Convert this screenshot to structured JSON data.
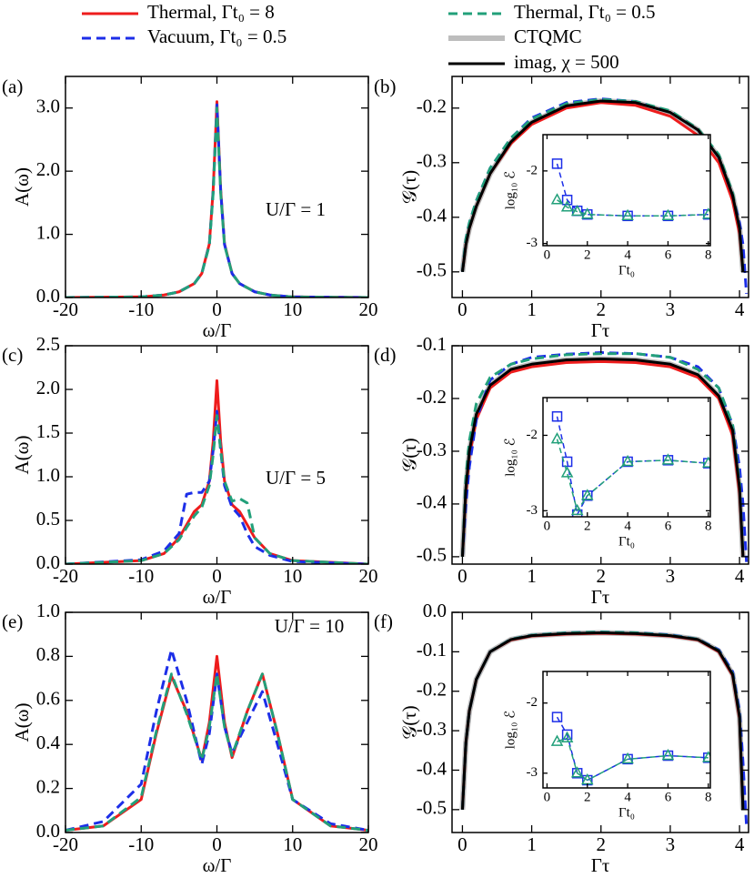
{
  "chart_data": [
    {
      "type": "line",
      "panel_label": "(a)",
      "xlabel": "ω/Γ",
      "ylabel": "A(ω)",
      "annotation": "U/Γ = 1",
      "x": [
        -20,
        -10,
        -7,
        -5,
        -3,
        -2,
        -1,
        -0.5,
        0,
        0.5,
        1,
        2,
        3,
        5,
        7,
        10,
        20
      ],
      "xlim": [
        -20,
        20
      ],
      "ylim": [
        0,
        3.5
      ],
      "xticks": [
        -20,
        -10,
        0,
        10,
        20
      ],
      "yticks": [
        {
          "value": 0,
          "label": "0.0"
        },
        {
          "value": 1,
          "label": "1.0"
        },
        {
          "value": 2,
          "label": "2.0"
        },
        {
          "value": 3,
          "label": "3.0"
        }
      ],
      "series": [
        {
          "color": "#ee1c1c",
          "style": "solid",
          "values": [
            0,
            0.01,
            0.04,
            0.09,
            0.22,
            0.38,
            0.85,
            1.7,
            3.1,
            1.7,
            0.85,
            0.38,
            0.22,
            0.09,
            0.04,
            0.01,
            0
          ]
        },
        {
          "color": "#1c2ee8",
          "style": "dashed",
          "values": [
            0,
            0.01,
            0.04,
            0.09,
            0.22,
            0.38,
            0.84,
            1.68,
            3.05,
            1.68,
            0.84,
            0.38,
            0.22,
            0.09,
            0.04,
            0.01,
            0
          ]
        },
        {
          "color": "#22a07a",
          "style": "dashed",
          "values": [
            0,
            0.01,
            0.04,
            0.09,
            0.22,
            0.38,
            0.83,
            1.65,
            3.0,
            1.65,
            0.83,
            0.38,
            0.22,
            0.09,
            0.04,
            0.01,
            0
          ]
        }
      ]
    },
    {
      "type": "line",
      "panel_label": "(b)",
      "xlabel": "Γτ",
      "ylabel": "𝒢(τ)",
      "x": [
        0,
        0.05,
        0.1,
        0.2,
        0.4,
        0.7,
        1,
        1.5,
        2,
        2.5,
        3,
        3.4,
        3.7,
        3.9,
        4,
        4.05,
        4.1
      ],
      "xlim": [
        -0.15,
        4.13
      ],
      "ylim": [
        -0.547,
        -0.142
      ],
      "xticks": [
        0,
        1,
        2,
        3,
        4
      ],
      "yticks": [
        -0.5,
        -0.4,
        -0.3,
        -0.2
      ],
      "series": [
        {
          "name": "Thermal, Γt₀ = 8",
          "color": "#ee1c1c",
          "style": "solid",
          "values": [
            -0.5,
            -0.45,
            -0.42,
            -0.38,
            -0.32,
            -0.265,
            -0.23,
            -0.2,
            -0.19,
            -0.195,
            -0.215,
            -0.25,
            -0.3,
            -0.37,
            -0.43,
            -0.5,
            null
          ]
        },
        {
          "name": "Vacuum, Γt₀ = 0.5",
          "color": "#1c2ee8",
          "style": "dashed",
          "values": [
            -0.5,
            -0.44,
            -0.41,
            -0.37,
            -0.31,
            -0.255,
            -0.218,
            -0.19,
            -0.183,
            -0.188,
            -0.207,
            -0.24,
            -0.29,
            -0.36,
            -0.41,
            -0.45,
            -0.54
          ]
        },
        {
          "name": "Thermal, Γt₀ = 0.5",
          "color": "#22a07a",
          "style": "dashed",
          "values": [
            -0.5,
            -0.44,
            -0.41,
            -0.37,
            -0.31,
            -0.255,
            -0.22,
            -0.192,
            -0.184,
            -0.188,
            -0.205,
            -0.238,
            -0.285,
            -0.355,
            -0.42,
            -0.5,
            null
          ]
        },
        {
          "name": "CTQMC",
          "color": "#bdbdbd",
          "style": "thick",
          "values": [
            -0.5,
            -0.45,
            -0.42,
            -0.38,
            -0.32,
            -0.262,
            -0.226,
            -0.196,
            -0.187,
            -0.19,
            -0.208,
            -0.24,
            -0.29,
            -0.36,
            -0.42,
            -0.5,
            null
          ]
        },
        {
          "name": "imag, χ = 500",
          "color": "#000000",
          "style": "solid",
          "values": [
            -0.5,
            -0.45,
            -0.42,
            -0.38,
            -0.32,
            -0.262,
            -0.226,
            -0.196,
            -0.187,
            -0.19,
            -0.208,
            -0.24,
            -0.29,
            -0.36,
            -0.42,
            -0.5,
            null
          ]
        }
      ]
    },
    {
      "type": "line",
      "inset": true,
      "xlabel": "Γt₀",
      "ylabel": "log₁₀ ℰ",
      "x": [
        0.5,
        1,
        1.5,
        2,
        4,
        6,
        8
      ],
      "xlim": [
        -0.2,
        8.1
      ],
      "ylim": [
        -3.03,
        -1.5
      ],
      "xticks": [
        0,
        2,
        4,
        6,
        8
      ],
      "yticks": [
        -3,
        -2
      ],
      "series": [
        {
          "color": "#1c2ee8",
          "style": "dashed",
          "marker": "square",
          "values": [
            -1.9,
            -2.4,
            -2.55,
            -2.6,
            -2.62,
            -2.62,
            -2.6
          ]
        },
        {
          "color": "#22a07a",
          "style": "dashed",
          "marker": "triangle",
          "values": [
            -2.4,
            -2.5,
            -2.56,
            -2.6,
            -2.62,
            -2.62,
            -2.6
          ]
        }
      ]
    },
    {
      "type": "line",
      "panel_label": "(c)",
      "xlabel": "ω/Γ",
      "ylabel": "A(ω)",
      "annotation": "U/Γ = 5",
      "x": [
        -20,
        -10,
        -7,
        -5,
        -4,
        -3,
        -2,
        -1,
        -0.5,
        0,
        0.5,
        1,
        2,
        3,
        4,
        5,
        7,
        10,
        20
      ],
      "xlim": [
        -20,
        20
      ],
      "ylim": [
        0,
        2.5
      ],
      "xticks": [
        -20,
        -10,
        0,
        10,
        20
      ],
      "yticks": [
        {
          "value": 0,
          "label": "0.0"
        },
        {
          "value": 0.5,
          "label": "0.5"
        },
        {
          "value": 1,
          "label": "1.0"
        },
        {
          "value": 1.5,
          "label": "1.5"
        },
        {
          "value": 2,
          "label": "2.0"
        },
        {
          "value": 2.5,
          "label": "2.5"
        }
      ],
      "series": [
        {
          "color": "#ee1c1c",
          "style": "solid",
          "values": [
            0,
            0.04,
            0.12,
            0.3,
            0.45,
            0.6,
            0.68,
            0.95,
            1.4,
            2.1,
            1.4,
            0.95,
            0.68,
            0.6,
            0.45,
            0.3,
            0.12,
            0.04,
            0
          ]
        },
        {
          "color": "#1c2ee8",
          "style": "dashed",
          "values": [
            0,
            0.05,
            0.15,
            0.35,
            0.8,
            0.82,
            0.82,
            0.95,
            1.3,
            1.75,
            1.3,
            0.9,
            0.65,
            0.55,
            0.35,
            0.2,
            0.1,
            0.03,
            0
          ]
        },
        {
          "color": "#22a07a",
          "style": "dashed",
          "values": [
            0,
            0.04,
            0.12,
            0.28,
            0.42,
            0.55,
            0.65,
            0.9,
            1.25,
            1.7,
            1.3,
            0.95,
            0.72,
            0.75,
            0.7,
            0.3,
            0.12,
            0.04,
            0
          ]
        }
      ]
    },
    {
      "type": "line",
      "panel_label": "(d)",
      "xlabel": "Γτ",
      "ylabel": "𝒢(τ)",
      "x": [
        0,
        0.05,
        0.1,
        0.2,
        0.4,
        0.7,
        1,
        1.5,
        2,
        2.5,
        3,
        3.4,
        3.7,
        3.9,
        4,
        4.05,
        4.1
      ],
      "xlim": [
        -0.15,
        4.13
      ],
      "ylim": [
        -0.514,
        -0.1
      ],
      "xticks": [
        0,
        1,
        2,
        3,
        4
      ],
      "yticks": [
        -0.5,
        -0.4,
        -0.3,
        -0.2,
        -0.1
      ],
      "series": [
        {
          "color": "#ee1c1c",
          "style": "solid",
          "values": [
            -0.5,
            -0.38,
            -0.31,
            -0.24,
            -0.18,
            -0.15,
            -0.14,
            -0.132,
            -0.13,
            -0.132,
            -0.14,
            -0.16,
            -0.2,
            -0.27,
            -0.38,
            -0.5,
            null
          ]
        },
        {
          "color": "#1c2ee8",
          "style": "dashed",
          "values": [
            -0.5,
            -0.4,
            -0.33,
            -0.24,
            -0.165,
            -0.135,
            -0.122,
            -0.116,
            -0.113,
            -0.115,
            -0.122,
            -0.14,
            -0.18,
            -0.25,
            -0.33,
            -0.4,
            -0.51
          ]
        },
        {
          "color": "#22a07a",
          "style": "dashed",
          "values": [
            -0.5,
            -0.35,
            -0.28,
            -0.21,
            -0.16,
            -0.135,
            -0.125,
            -0.117,
            -0.115,
            -0.115,
            -0.122,
            -0.145,
            -0.18,
            -0.25,
            -0.36,
            -0.5,
            null
          ]
        },
        {
          "color": "#bdbdbd",
          "style": "thick",
          "values": [
            -0.5,
            -0.37,
            -0.3,
            -0.23,
            -0.175,
            -0.145,
            -0.135,
            -0.127,
            -0.125,
            -0.127,
            -0.135,
            -0.155,
            -0.195,
            -0.26,
            -0.37,
            -0.5,
            null
          ]
        },
        {
          "color": "#000000",
          "style": "solid",
          "values": [
            -0.5,
            -0.37,
            -0.3,
            -0.23,
            -0.175,
            -0.145,
            -0.135,
            -0.127,
            -0.125,
            -0.127,
            -0.135,
            -0.155,
            -0.195,
            -0.26,
            -0.37,
            -0.5,
            null
          ]
        }
      ]
    },
    {
      "type": "line",
      "inset": true,
      "xlabel": "Γt₀",
      "ylabel": "log₁₀ ℰ",
      "x": [
        0.5,
        1,
        1.5,
        2,
        4,
        6,
        8
      ],
      "xlim": [
        -0.2,
        8.1
      ],
      "ylim": [
        -3.08,
        -1.5
      ],
      "xticks": [
        0,
        2,
        4,
        6,
        8
      ],
      "yticks": [
        -3,
        -2
      ],
      "series": [
        {
          "color": "#1c2ee8",
          "style": "dashed",
          "marker": "square",
          "values": [
            -1.75,
            -2.35,
            -3.05,
            -2.8,
            -2.35,
            -2.33,
            -2.37
          ]
        },
        {
          "color": "#22a07a",
          "style": "dashed",
          "marker": "triangle",
          "values": [
            -2.05,
            -2.5,
            -3.0,
            -2.8,
            -2.35,
            -2.33,
            -2.37
          ]
        }
      ]
    },
    {
      "type": "line",
      "panel_label": "(e)",
      "xlabel": "ω/Γ",
      "ylabel": "A(ω)",
      "annotation": "U/Γ = 10",
      "x": [
        -20,
        -15,
        -10,
        -8,
        -6,
        -4,
        -2,
        -1,
        0,
        1,
        2,
        4,
        6,
        8,
        10,
        15,
        20
      ],
      "xlim": [
        -20,
        20
      ],
      "ylim": [
        0,
        1
      ],
      "xticks": [
        -20,
        -10,
        0,
        10,
        20
      ],
      "yticks": [
        {
          "value": 0,
          "label": "0.0"
        },
        0.2,
        0.4,
        0.6,
        0.8,
        {
          "value": 1,
          "label": "1.0"
        }
      ],
      "series": [
        {
          "color": "#ee1c1c",
          "style": "solid",
          "values": [
            0.01,
            0.03,
            0.15,
            0.45,
            0.71,
            0.55,
            0.33,
            0.5,
            0.8,
            0.5,
            0.34,
            0.55,
            0.72,
            0.45,
            0.15,
            0.03,
            0.01
          ]
        },
        {
          "color": "#1c2ee8",
          "style": "dashed",
          "values": [
            0.01,
            0.05,
            0.22,
            0.55,
            0.83,
            0.6,
            0.31,
            0.45,
            0.72,
            0.48,
            0.36,
            0.5,
            0.64,
            0.4,
            0.15,
            0.04,
            0.01
          ]
        },
        {
          "color": "#22a07a",
          "style": "dashed",
          "values": [
            0.01,
            0.03,
            0.16,
            0.46,
            0.72,
            0.54,
            0.33,
            0.48,
            0.72,
            0.48,
            0.35,
            0.55,
            0.72,
            0.45,
            0.15,
            0.03,
            0.01
          ]
        }
      ]
    },
    {
      "type": "line",
      "panel_label": "(f)",
      "xlabel": "Γτ",
      "ylabel": "𝒢(τ)",
      "x": [
        0,
        0.05,
        0.1,
        0.2,
        0.4,
        0.7,
        1,
        1.5,
        2,
        2.5,
        3,
        3.4,
        3.7,
        3.9,
        4,
        4.05,
        4.1
      ],
      "xlim": [
        -0.15,
        4.13
      ],
      "ylim": [
        -0.558,
        0
      ],
      "xticks": [
        0,
        1,
        2,
        3,
        4
      ],
      "yticks": [
        -0.5,
        -0.4,
        -0.3,
        -0.2,
        -0.1,
        {
          "value": 0,
          "label": "0.0"
        }
      ],
      "series": [
        {
          "color": "#ee1c1c",
          "style": "solid",
          "values": [
            -0.5,
            -0.33,
            -0.25,
            -0.17,
            -0.1,
            -0.07,
            -0.06,
            -0.055,
            -0.053,
            -0.055,
            -0.06,
            -0.07,
            -0.1,
            -0.16,
            -0.27,
            -0.5,
            null
          ]
        },
        {
          "color": "#1c2ee8",
          "style": "dashed",
          "values": [
            -0.5,
            -0.33,
            -0.25,
            -0.17,
            -0.1,
            -0.068,
            -0.058,
            -0.052,
            -0.05,
            -0.052,
            -0.057,
            -0.068,
            -0.095,
            -0.15,
            -0.25,
            -0.38,
            -0.54
          ]
        },
        {
          "color": "#22a07a",
          "style": "dashed",
          "values": [
            -0.5,
            -0.33,
            -0.25,
            -0.17,
            -0.1,
            -0.068,
            -0.058,
            -0.052,
            -0.05,
            -0.052,
            -0.058,
            -0.068,
            -0.097,
            -0.155,
            -0.26,
            -0.5,
            null
          ]
        },
        {
          "color": "#bdbdbd",
          "style": "thick",
          "values": [
            -0.5,
            -0.33,
            -0.25,
            -0.17,
            -0.1,
            -0.069,
            -0.059,
            -0.054,
            -0.052,
            -0.054,
            -0.059,
            -0.069,
            -0.098,
            -0.157,
            -0.265,
            -0.5,
            null
          ]
        },
        {
          "color": "#000000",
          "style": "solid",
          "values": [
            -0.5,
            -0.33,
            -0.25,
            -0.17,
            -0.1,
            -0.069,
            -0.059,
            -0.054,
            -0.052,
            -0.054,
            -0.059,
            -0.069,
            -0.098,
            -0.157,
            -0.265,
            -0.5,
            null
          ]
        }
      ]
    },
    {
      "type": "line",
      "inset": true,
      "xlabel": "Γt₀",
      "ylabel": "log₁₀ ℰ",
      "x": [
        0.5,
        1,
        1.5,
        2,
        4,
        6,
        8
      ],
      "xlim": [
        -0.2,
        8.1
      ],
      "ylim": [
        -3.21,
        -1.55
      ],
      "xticks": [
        0,
        2,
        4,
        6,
        8
      ],
      "yticks": [
        -3,
        -2
      ],
      "series": [
        {
          "color": "#1c2ee8",
          "style": "dashed",
          "marker": "square",
          "values": [
            -2.2,
            -2.45,
            -3.0,
            -3.1,
            -2.8,
            -2.75,
            -2.78
          ]
        },
        {
          "color": "#22a07a",
          "style": "dashed",
          "marker": "triangle",
          "values": [
            -2.55,
            -2.5,
            -3.0,
            -3.1,
            -2.8,
            -2.75,
            -2.78
          ]
        }
      ]
    }
  ]
}
